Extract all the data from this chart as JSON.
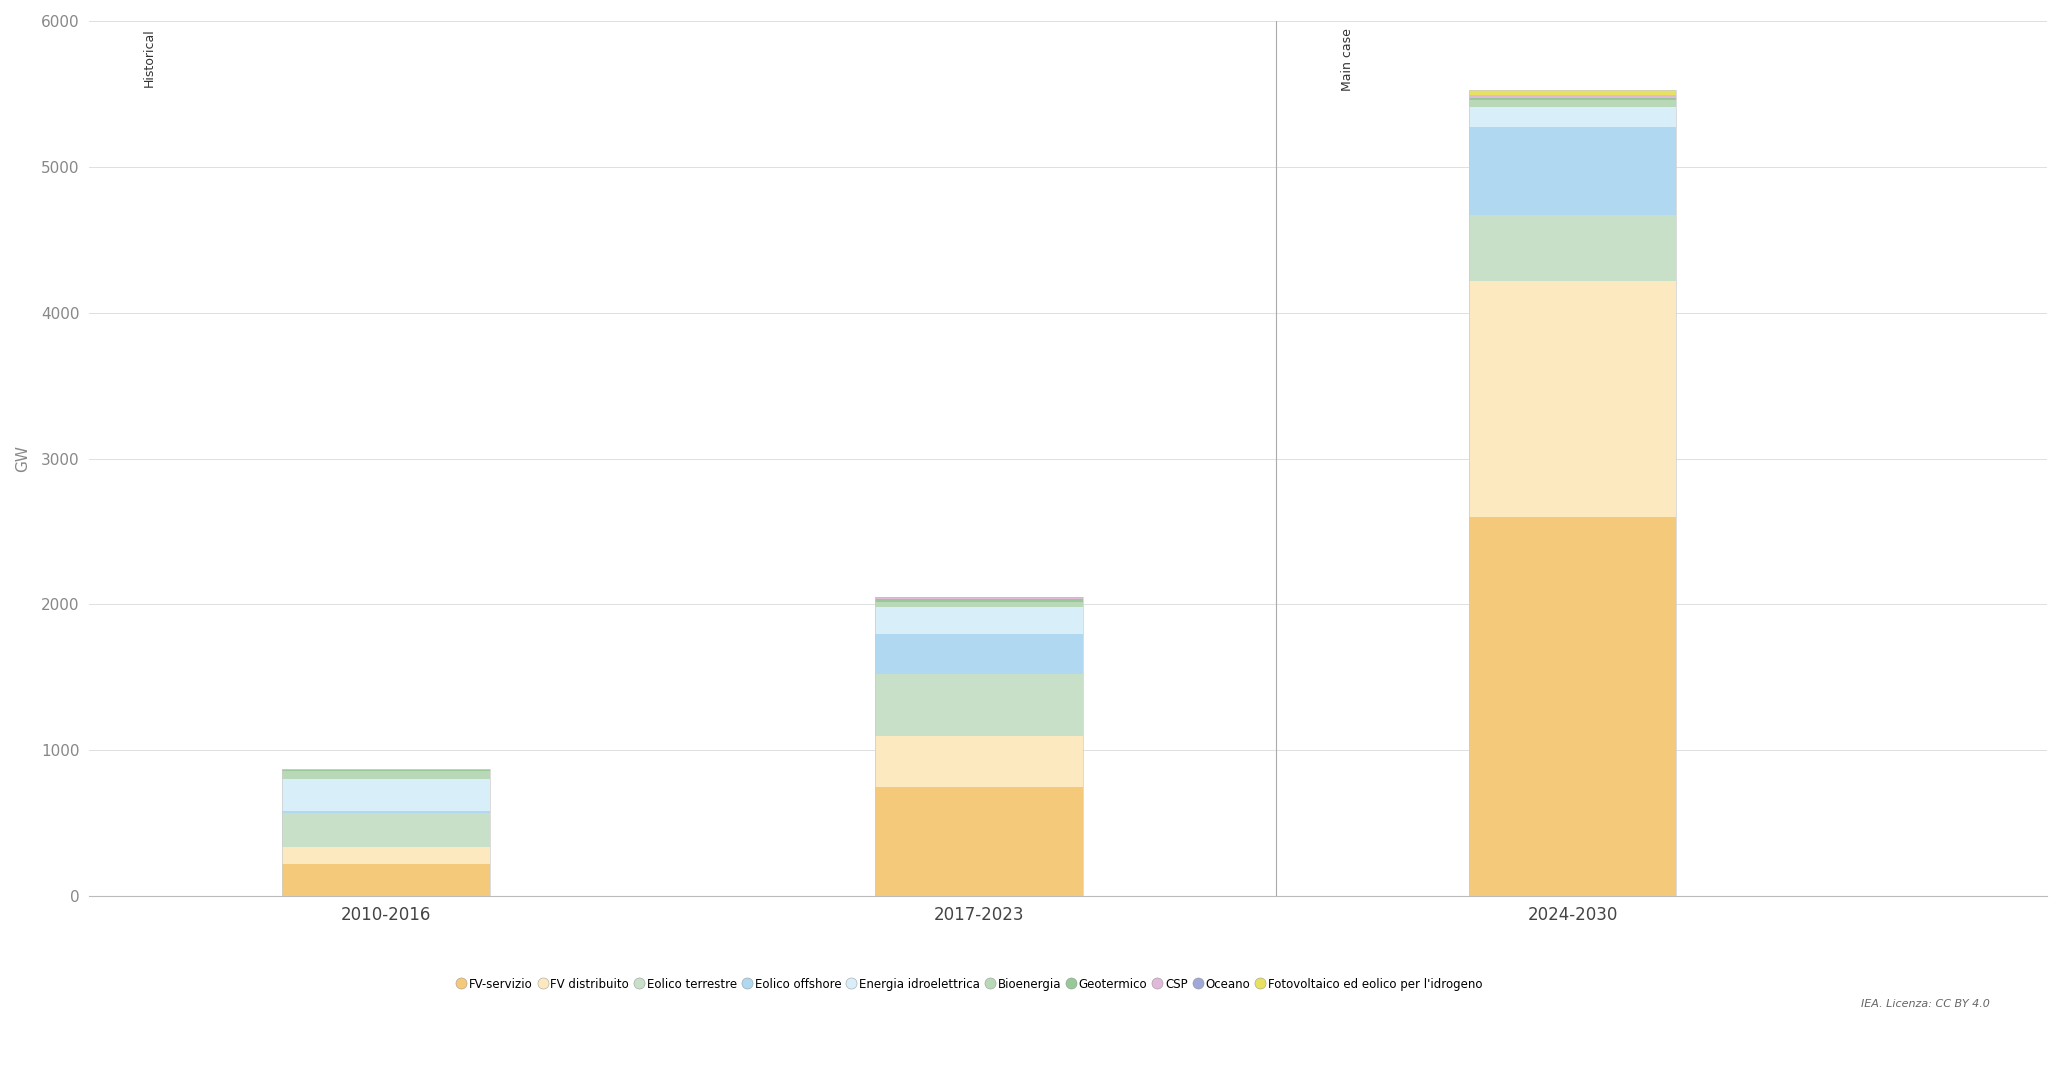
{
  "categories": [
    "2010-2016",
    "2017-2023",
    "2024-2030"
  ],
  "segments": [
    {
      "name": "FV-servizio",
      "color": "#f5c97a",
      "values": [
        220,
        750,
        2600
      ]
    },
    {
      "name": "FV distribuito",
      "color": "#fde9c0",
      "values": [
        120,
        350,
        1620
      ]
    },
    {
      "name": "Eolico terrestre",
      "color": "#c5dfc5",
      "values": [
        230,
        420,
        450
      ]
    },
    {
      "name": "Eolico offshore",
      "color": "#b8dff0",
      "values": [
        15,
        280,
        600
      ]
    },
    {
      "name": "Energia idroelettrica",
      "color": "#dbeef8",
      "values": [
        220,
        180,
        140
      ]
    },
    {
      "name": "Bioenergia",
      "color": "#c5dfc5",
      "values": [
        50,
        40,
        50
      ]
    },
    {
      "name": "Geotermico",
      "color": "#a8d8a8",
      "values": [
        10,
        15,
        15
      ]
    },
    {
      "name": "CSP",
      "color": "#e8c0e0",
      "values": [
        5,
        10,
        15
      ]
    },
    {
      "name": "Oceano",
      "color": "#b0b8e0",
      "values": [
        2,
        5,
        5
      ]
    },
    {
      "name": "Fotovoltaico ed eolico per l'idrogeno",
      "color": "#e8e060",
      "values": [
        0,
        0,
        30
      ]
    }
  ],
  "ylim": [
    0,
    6000
  ],
  "yticks": [
    0,
    1000,
    2000,
    3000,
    4000,
    5000,
    6000
  ],
  "ylabel": "GW",
  "historical_label": "Historical",
  "maincase_label": "Main case",
  "background_color": "#ffffff",
  "grid_color": "#e8e8e8",
  "credit": "IEA. Licenza: CC BY 4.0"
}
